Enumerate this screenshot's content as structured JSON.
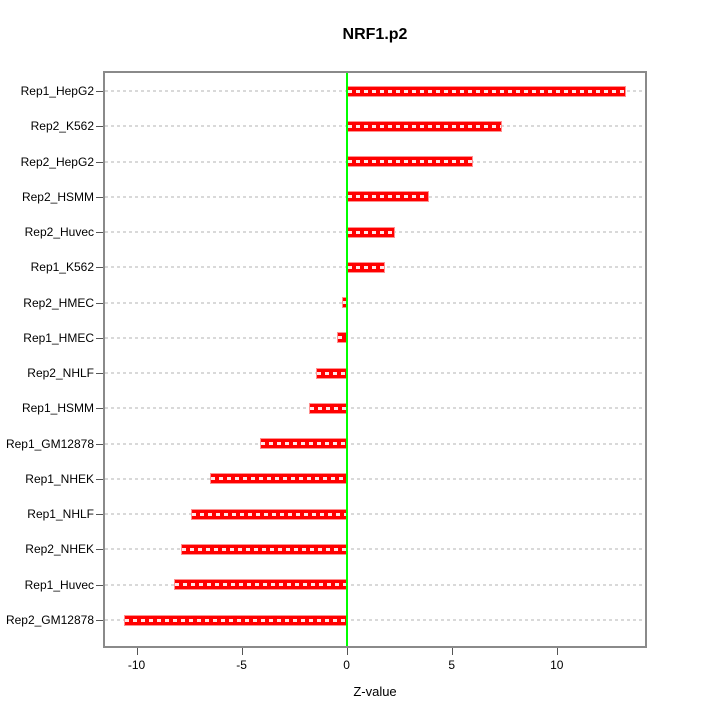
{
  "chart_data": {
    "type": "bar",
    "orientation": "horizontal",
    "title": "NRF1.p2",
    "xlabel": "Z-value",
    "categories": [
      "Rep1_HepG2",
      "Rep2_K562",
      "Rep2_HepG2",
      "Rep2_HSMM",
      "Rep2_Huvec",
      "Rep1_K562",
      "Rep2_HMEC",
      "Rep1_HMEC",
      "Rep2_NHLF",
      "Rep1_HSMM",
      "Rep1_GM12878",
      "Rep1_NHEK",
      "Rep1_NHLF",
      "Rep2_NHEK",
      "Rep1_Huvec",
      "Rep2_GM12878"
    ],
    "values": [
      13.3,
      7.4,
      6.0,
      3.9,
      2.3,
      1.85,
      -0.2,
      -0.45,
      -1.45,
      -1.8,
      -4.1,
      -6.5,
      -7.4,
      -7.9,
      -8.2,
      -10.6
    ],
    "xticks": [
      "-10",
      "-5",
      "0",
      "5",
      "10"
    ],
    "xtick_values": [
      -10,
      -5,
      0,
      5,
      10
    ],
    "xlim": [
      -11.5,
      14.2
    ],
    "grid": "horizontal dashed line per category",
    "legend": "none",
    "colors": {
      "bar_fill": "#ff0000",
      "bar_edge": "#ff9090",
      "zero_line": "#00ff00",
      "gridline": "#d9d9d9",
      "plot_border": "#8a8a8a",
      "text": "#000000"
    }
  }
}
